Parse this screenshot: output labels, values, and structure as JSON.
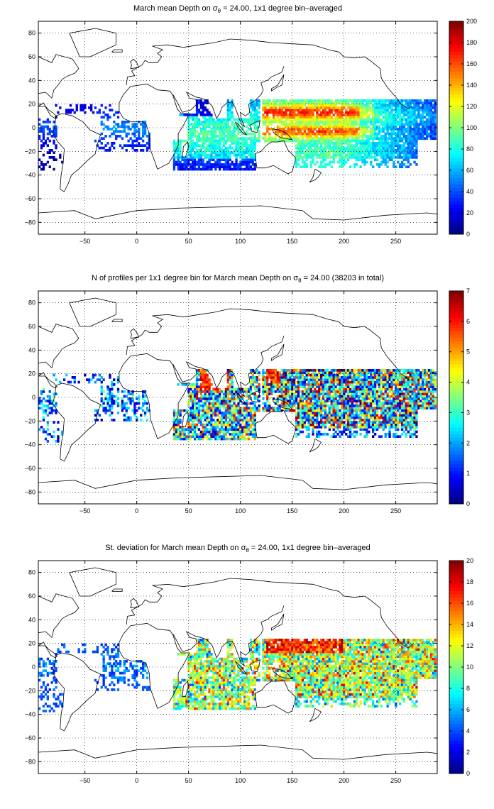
{
  "chart_data": [
    {
      "type": "heatmap",
      "title": "March mean Depth on σ",
      "title_subscript": "θ",
      "title_rest": " = 24.00, 1x1 degree bin–averaged",
      "xlim": [
        -95,
        290
      ],
      "ylim": [
        -90,
        90
      ],
      "xticks": [
        -50,
        0,
        50,
        100,
        150,
        200,
        250
      ],
      "yticks": [
        80,
        60,
        40,
        20,
        0,
        -20,
        -40,
        -60,
        -80
      ],
      "grid": true,
      "colorbar": {
        "min": 0,
        "max": 200,
        "ticks": [
          0,
          20,
          40,
          60,
          80,
          100,
          120,
          140,
          160,
          180,
          200
        ],
        "colormap": "jet"
      },
      "field": "depth"
    },
    {
      "type": "heatmap",
      "title": "N of profiles per 1x1 degree bin for March mean Depth on σ",
      "title_subscript": "θ",
      "title_rest": " = 24.00 (38203 in total)",
      "xlim": [
        -95,
        290
      ],
      "ylim": [
        -90,
        90
      ],
      "xticks": [
        -50,
        0,
        50,
        100,
        150,
        200,
        250
      ],
      "yticks": [
        80,
        60,
        40,
        20,
        0,
        -20,
        -40,
        -60,
        -80
      ],
      "grid": true,
      "colorbar": {
        "min": 0,
        "max": 7,
        "ticks": [
          0,
          1,
          2,
          3,
          4,
          5,
          6,
          7
        ],
        "colormap": "jet"
      },
      "field": "count"
    },
    {
      "type": "heatmap",
      "title": "St. deviation for March mean Depth on σ",
      "title_subscript": "θ",
      "title_rest": " = 24.00, 1x1 degree bin–averaged",
      "xlim": [
        -95,
        290
      ],
      "ylim": [
        -90,
        90
      ],
      "xticks": [
        -50,
        0,
        50,
        100,
        150,
        200,
        250
      ],
      "yticks": [
        80,
        60,
        40,
        20,
        0,
        -20,
        -40,
        -60,
        -80
      ],
      "grid": true,
      "colorbar": {
        "min": 0,
        "max": 20,
        "ticks": [
          0,
          2,
          4,
          6,
          8,
          10,
          12,
          14,
          16,
          18,
          20
        ],
        "colormap": "jet"
      },
      "field": "std"
    }
  ]
}
